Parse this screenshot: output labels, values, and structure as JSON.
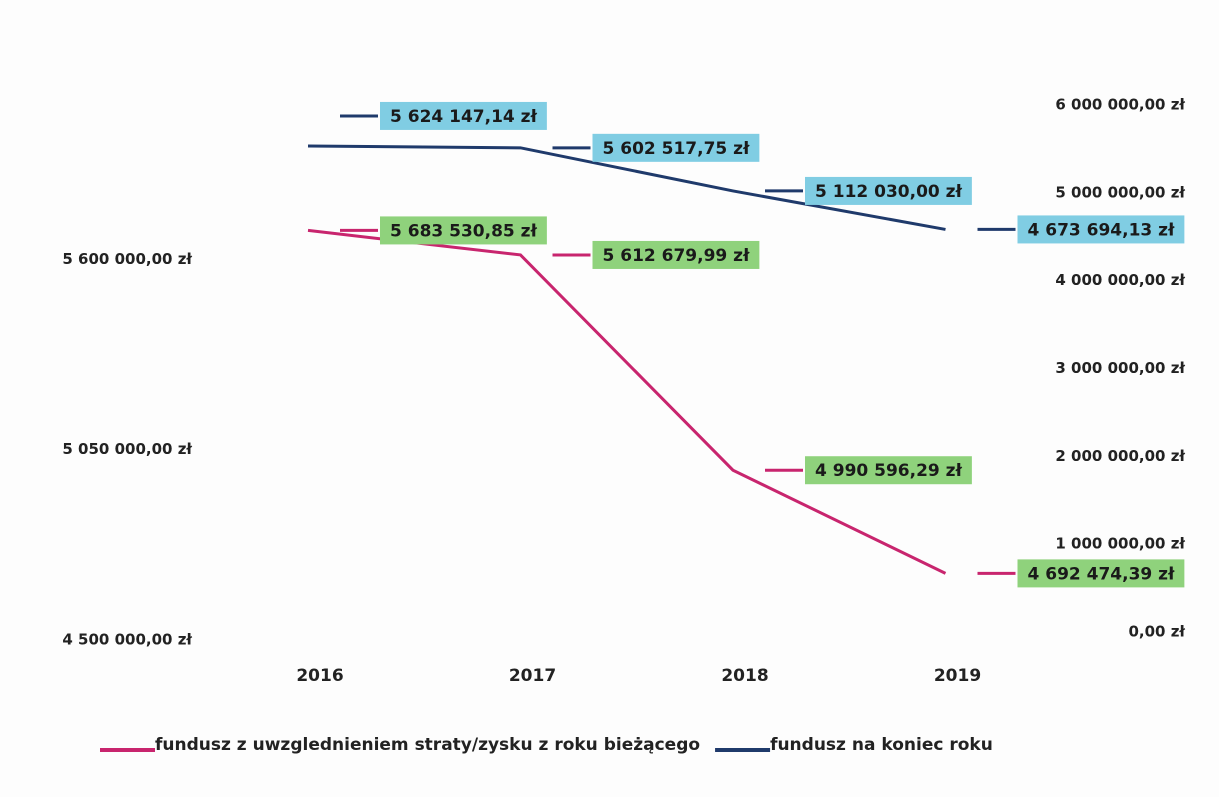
{
  "chart_data": {
    "type": "line",
    "categories": [
      "2016",
      "2017",
      "2018",
      "2019"
    ],
    "series": [
      {
        "name": "fundusz z uwzglednieniem straty/zysku z roku bieżącego",
        "color": "#c8256e",
        "label_color": "#8fd27c",
        "values": [
          5683530.85,
          5612679.99,
          4990596.29,
          4692474.39
        ],
        "value_labels": [
          "5 683 530,85 zł",
          "5 612 679,99 zł",
          "4 990 596,29 zł",
          "4 692 474,39 zł"
        ]
      },
      {
        "name": "fundusz na koniec roku",
        "color": "#1f3a6b",
        "label_color": "#80cde3",
        "axis": "y2",
        "values": [
          5624147.14,
          5602517.75,
          5112030.0,
          4673694.13
        ],
        "value_labels": [
          "5 624 147,14 zł",
          "5 602 517,75 zł",
          "5 112 030,00 zł",
          "4 673 694,13 zł"
        ]
      }
    ],
    "ylim": [
      4500000,
      6150000
    ],
    "yticks": [
      {
        "value": 4500000,
        "label": "4 500 000,00 zł"
      },
      {
        "value": 5050000,
        "label": "5 050 000,00 zł"
      },
      {
        "value": 5600000,
        "label": "5 600 000,00 zł"
      }
    ],
    "y2lim": [
      0,
      6500000
    ],
    "y2ticks": [
      {
        "value": 0,
        "label": "0,00 zł"
      },
      {
        "value": 1000000,
        "label": "1 000 000,00 zł"
      },
      {
        "value": 2000000,
        "label": "2 000 000,00 zł"
      },
      {
        "value": 3000000,
        "label": "3 000 000,00 zł"
      },
      {
        "value": 4000000,
        "label": "4 000 000,00 zł"
      },
      {
        "value": 5000000,
        "label": "5 000 000,00 zł"
      },
      {
        "value": 6000000,
        "label": "6 000 000,00 zł"
      }
    ],
    "legend": "bottom"
  }
}
